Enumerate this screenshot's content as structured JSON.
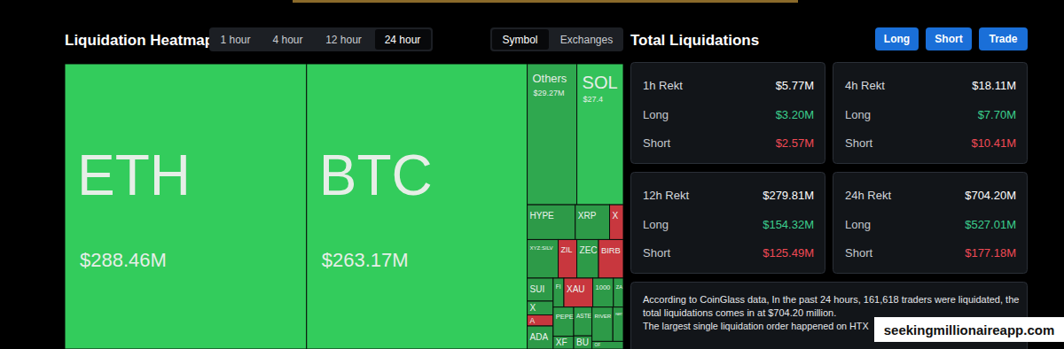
{
  "chart_data": {
    "type": "treemap",
    "title": "Liquidation Heatmap",
    "categories": [
      "ETH",
      "BTC",
      "Others",
      "SOL",
      "HYPE",
      "XRP",
      "X",
      "XYZ:SILV",
      "ZIL",
      "ZEC",
      "BIRB",
      "SUI",
      "X",
      "A",
      "ADA",
      "FI",
      "XAU",
      "1000",
      "ZA",
      "PEPE",
      "XF",
      "ASTE",
      "BU",
      "RIVER",
      "FART",
      "OF"
    ],
    "values": [
      288.46,
      263.17,
      29.27,
      27.4,
      7,
      5,
      2,
      5,
      3,
      3.5,
      4,
      2.5,
      1.5,
      1.2,
      2.5,
      1.3,
      3.5,
      2.5,
      1.2,
      2.5,
      1.1,
      2.2,
      1,
      3,
      1.5,
      1
    ],
    "value_labels": [
      "$288.46M",
      "$263.17M",
      "$29.27M",
      "$27.4",
      null,
      null,
      null,
      null,
      null,
      null,
      null,
      null,
      null,
      null,
      null,
      null,
      null,
      null,
      null,
      null,
      null,
      null,
      null,
      null,
      null,
      null
    ],
    "colors": [
      "#33cc5c",
      "#33cc5c",
      "#2fa84f",
      "#33c25a",
      "#2d9a48",
      "#2d9a48",
      "#c8373e",
      "#2d9a48",
      "#c8373e",
      "#2d9a48",
      "#c8373e",
      "#2d9a48",
      "#2d9a48",
      "#c8373e",
      "#2d9a48",
      "#2d9a48",
      "#c8373e",
      "#2d9a48",
      "#2d9a48",
      "#2d9a48",
      "#2d9a48",
      "#2d9a48",
      "#2d9a48",
      "#2d9a48",
      "#2d9a48",
      "#2d9a48"
    ],
    "data_labels": true
  },
  "controls": {
    "time_tabs": [
      "1 hour",
      "4 hour",
      "12 hour",
      "24 hour"
    ],
    "active_time_tab": "24 hour",
    "view_tabs": [
      "Symbol",
      "Exchanges"
    ],
    "active_view_tab": "Symbol"
  },
  "summary": {
    "title": "Total Liquidations",
    "buttons": [
      "Long",
      "Short",
      "Trade"
    ],
    "cards": [
      {
        "title": "1h Rekt",
        "total": "$5.77M",
        "rows": [
          {
            "label": "Long",
            "value": "$3.20M"
          },
          {
            "label": "Short",
            "value": "$2.57M"
          }
        ]
      },
      {
        "title": "4h Rekt",
        "total": "$18.11M",
        "rows": [
          {
            "label": "Long",
            "value": "$7.70M"
          },
          {
            "label": "Short",
            "value": "$10.41M"
          }
        ]
      },
      {
        "title": "12h Rekt",
        "total": "$279.81M",
        "rows": [
          {
            "label": "Long",
            "value": "$154.32M"
          },
          {
            "label": "Short",
            "value": "$125.49M"
          }
        ]
      },
      {
        "title": "24h Rekt",
        "total": "$704.20M",
        "rows": [
          {
            "label": "Long",
            "value": "$527.01M"
          },
          {
            "label": "Short",
            "value": "$177.18M"
          }
        ]
      }
    ],
    "note": [
      "According to CoinGlass data, In the past 24 hours, 161,618 traders were liquidated, the",
      "total liquidations comes in at $704.20 million.",
      "The largest single liquidation order happened on HTX"
    ]
  },
  "watermark": "seekingmillionaireapp.com"
}
